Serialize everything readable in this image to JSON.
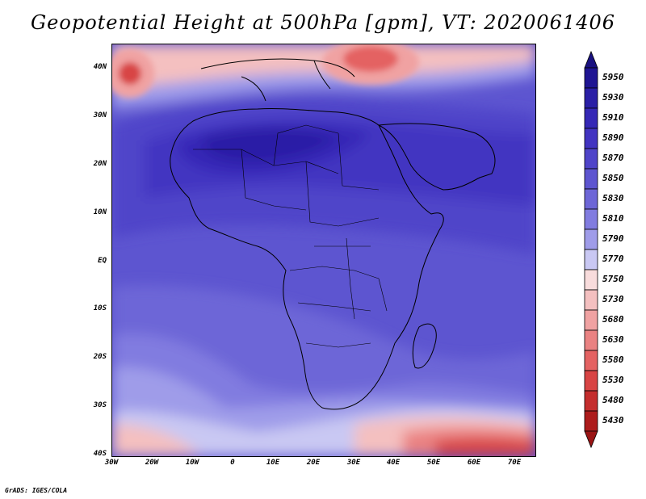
{
  "title": "Geopotential Height at 500hPa [gpm], VT: 2020061406",
  "credit": "GrADS: IGES/COLA",
  "map": {
    "lat_labels": [
      "40N",
      "30N",
      "20N",
      "10N",
      "EQ",
      "10S",
      "20S",
      "30S",
      "40S"
    ],
    "lon_labels": [
      "30W",
      "20W",
      "10W",
      "0",
      "10E",
      "20E",
      "30E",
      "40E",
      "50E",
      "60E",
      "70E"
    ],
    "lat_range": [
      -40,
      45
    ],
    "lon_range": [
      -30,
      75
    ]
  },
  "colorbar": {
    "levels": [
      "5950",
      "5930",
      "5910",
      "5890",
      "5870",
      "5850",
      "5830",
      "5810",
      "5790",
      "5770",
      "5750",
      "5730",
      "5680",
      "5630",
      "5580",
      "5530",
      "5480",
      "5430"
    ],
    "colors": [
      "#1f1593",
      "#2a1fa6",
      "#3528b6",
      "#4234c1",
      "#4f44c9",
      "#5d55d0",
      "#6d66d7",
      "#817ce0",
      "#9f9ce9",
      "#c9c8f3",
      "#f8dcdc",
      "#f4c0c0",
      "#f0a2a2",
      "#ea8282",
      "#e46262",
      "#d84444",
      "#c42d2d",
      "#ad1c1c"
    ],
    "top_color": "#1a1180",
    "bottom_color": "#9a1414"
  }
}
